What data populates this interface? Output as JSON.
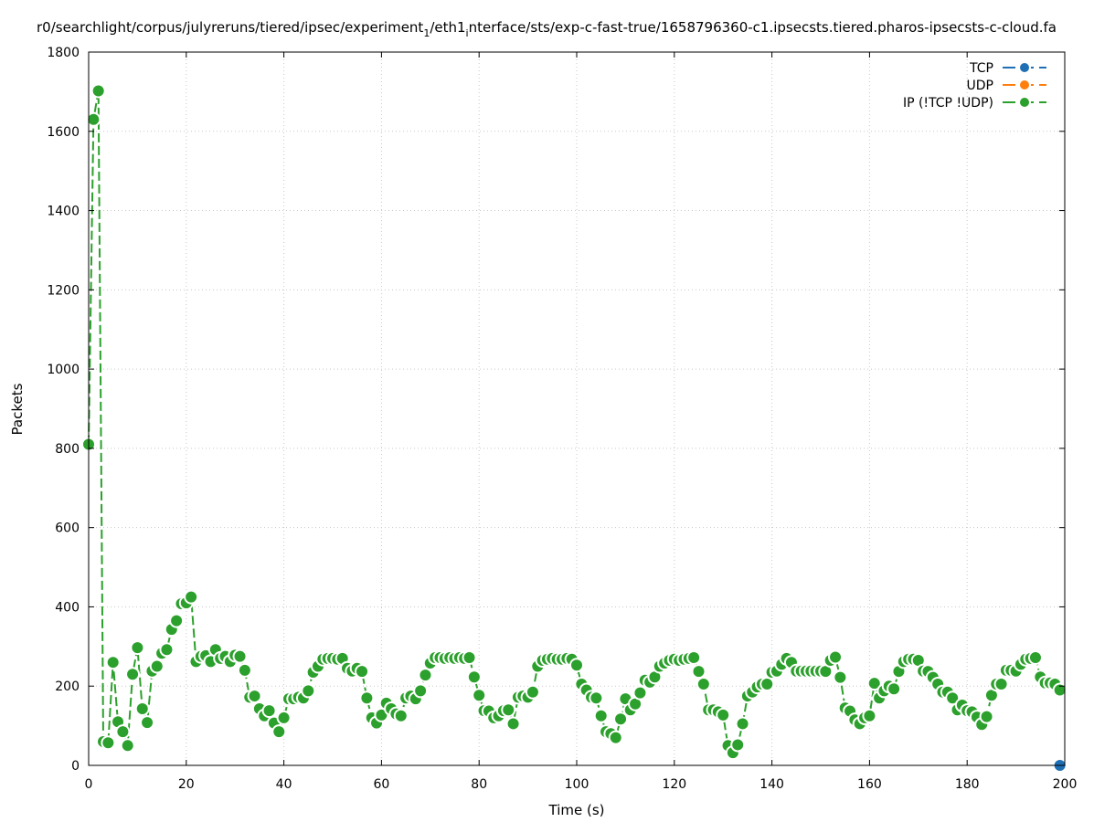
{
  "chart_data": {
    "type": "line",
    "title_prefix": "r0/searchlight/corpus/julyreruns/tiered/ipsec/experiment",
    "title_sub1": "1",
    "title_mid": "/eth1",
    "title_sub2": "i",
    "title_suffix": "nterface/sts/exp-c-fast-true/1658796360-c1.ipsecsts.tiered.pharos-ipsecsts-c-cloud.fa",
    "xlabel": "Time (s)",
    "ylabel": "Packets",
    "xlim": [
      0,
      200
    ],
    "ylim": [
      0,
      1800
    ],
    "xticks": [
      0,
      20,
      40,
      60,
      80,
      100,
      120,
      140,
      160,
      180,
      200
    ],
    "yticks": [
      0,
      200,
      400,
      600,
      800,
      1000,
      1200,
      1400,
      1600,
      1800
    ],
    "grid": true,
    "legend_position": "top-right",
    "series": [
      {
        "name": "TCP",
        "color": "#1f6fb4",
        "points": [
          [
            199,
            0
          ]
        ]
      },
      {
        "name": "UDP",
        "color": "#ff7f0e",
        "points": [
          [
            199,
            0
          ]
        ]
      },
      {
        "name": "IP (!TCP  !UDP)",
        "color": "#2ca02c",
        "points": [
          [
            0,
            810
          ],
          [
            1,
            1630
          ],
          [
            2,
            1702
          ],
          [
            3,
            60
          ],
          [
            4,
            57
          ],
          [
            5,
            260
          ],
          [
            6,
            110
          ],
          [
            7,
            85
          ],
          [
            8,
            50
          ],
          [
            9,
            230
          ],
          [
            10,
            297
          ],
          [
            11,
            143
          ],
          [
            12,
            108
          ],
          [
            13,
            238
          ],
          [
            14,
            250
          ],
          [
            15,
            283
          ],
          [
            16,
            292
          ],
          [
            17,
            343
          ],
          [
            18,
            365
          ],
          [
            19,
            408
          ],
          [
            20,
            410
          ],
          [
            21,
            425
          ],
          [
            22,
            262
          ],
          [
            23,
            275
          ],
          [
            24,
            277
          ],
          [
            25,
            262
          ],
          [
            26,
            292
          ],
          [
            27,
            270
          ],
          [
            28,
            275
          ],
          [
            29,
            262
          ],
          [
            30,
            278
          ],
          [
            31,
            275
          ],
          [
            32,
            240
          ],
          [
            33,
            172
          ],
          [
            34,
            175
          ],
          [
            35,
            143
          ],
          [
            36,
            125
          ],
          [
            37,
            138
          ],
          [
            38,
            107
          ],
          [
            39,
            85
          ],
          [
            40,
            120
          ],
          [
            41,
            168
          ],
          [
            42,
            168
          ],
          [
            43,
            172
          ],
          [
            44,
            170
          ],
          [
            45,
            188
          ],
          [
            46,
            235
          ],
          [
            47,
            250
          ],
          [
            48,
            268
          ],
          [
            49,
            270
          ],
          [
            50,
            270
          ],
          [
            51,
            268
          ],
          [
            52,
            270
          ],
          [
            53,
            245
          ],
          [
            54,
            238
          ],
          [
            55,
            245
          ],
          [
            56,
            237
          ],
          [
            57,
            170
          ],
          [
            58,
            120
          ],
          [
            59,
            107
          ],
          [
            60,
            127
          ],
          [
            61,
            157
          ],
          [
            62,
            143
          ],
          [
            63,
            130
          ],
          [
            64,
            125
          ],
          [
            65,
            170
          ],
          [
            66,
            175
          ],
          [
            67,
            168
          ],
          [
            68,
            188
          ],
          [
            69,
            228
          ],
          [
            70,
            258
          ],
          [
            71,
            272
          ],
          [
            72,
            272
          ],
          [
            73,
            270
          ],
          [
            74,
            272
          ],
          [
            75,
            270
          ],
          [
            76,
            272
          ],
          [
            77,
            270
          ],
          [
            78,
            272
          ],
          [
            79,
            223
          ],
          [
            80,
            177
          ],
          [
            81,
            138
          ],
          [
            82,
            137
          ],
          [
            83,
            120
          ],
          [
            84,
            125
          ],
          [
            85,
            138
          ],
          [
            86,
            140
          ],
          [
            87,
            105
          ],
          [
            88,
            172
          ],
          [
            89,
            175
          ],
          [
            90,
            172
          ],
          [
            91,
            185
          ],
          [
            92,
            250
          ],
          [
            93,
            265
          ],
          [
            94,
            268
          ],
          [
            95,
            270
          ],
          [
            96,
            268
          ],
          [
            97,
            268
          ],
          [
            98,
            270
          ],
          [
            99,
            268
          ],
          [
            100,
            253
          ],
          [
            101,
            205
          ],
          [
            102,
            190
          ],
          [
            103,
            172
          ],
          [
            104,
            170
          ],
          [
            105,
            125
          ],
          [
            106,
            85
          ],
          [
            107,
            80
          ],
          [
            108,
            70
          ],
          [
            109,
            117
          ],
          [
            110,
            168
          ],
          [
            111,
            140
          ],
          [
            112,
            155
          ],
          [
            113,
            183
          ],
          [
            114,
            215
          ],
          [
            115,
            210
          ],
          [
            116,
            223
          ],
          [
            117,
            250
          ],
          [
            118,
            258
          ],
          [
            119,
            265
          ],
          [
            120,
            268
          ],
          [
            121,
            265
          ],
          [
            122,
            268
          ],
          [
            123,
            270
          ],
          [
            124,
            272
          ],
          [
            125,
            237
          ],
          [
            126,
            205
          ],
          [
            127,
            140
          ],
          [
            128,
            140
          ],
          [
            129,
            135
          ],
          [
            130,
            127
          ],
          [
            131,
            50
          ],
          [
            132,
            32
          ],
          [
            133,
            52
          ],
          [
            134,
            105
          ],
          [
            135,
            175
          ],
          [
            136,
            185
          ],
          [
            137,
            198
          ],
          [
            138,
            205
          ],
          [
            139,
            205
          ],
          [
            140,
            235
          ],
          [
            141,
            238
          ],
          [
            142,
            255
          ],
          [
            143,
            270
          ],
          [
            144,
            260
          ],
          [
            145,
            238
          ],
          [
            146,
            238
          ],
          [
            147,
            238
          ],
          [
            148,
            238
          ],
          [
            149,
            238
          ],
          [
            150,
            238
          ],
          [
            151,
            237
          ],
          [
            152,
            265
          ],
          [
            153,
            273
          ],
          [
            154,
            222
          ],
          [
            155,
            145
          ],
          [
            156,
            137
          ],
          [
            157,
            115
          ],
          [
            158,
            105
          ],
          [
            159,
            120
          ],
          [
            160,
            125
          ],
          [
            161,
            207
          ],
          [
            162,
            170
          ],
          [
            163,
            188
          ],
          [
            164,
            200
          ],
          [
            165,
            193
          ],
          [
            166,
            237
          ],
          [
            167,
            262
          ],
          [
            168,
            268
          ],
          [
            169,
            268
          ],
          [
            170,
            265
          ],
          [
            171,
            238
          ],
          [
            172,
            237
          ],
          [
            173,
            222
          ],
          [
            174,
            205
          ],
          [
            175,
            185
          ],
          [
            176,
            185
          ],
          [
            177,
            170
          ],
          [
            178,
            140
          ],
          [
            179,
            152
          ],
          [
            180,
            138
          ],
          [
            181,
            135
          ],
          [
            182,
            122
          ],
          [
            183,
            103
          ],
          [
            184,
            123
          ],
          [
            185,
            177
          ],
          [
            186,
            205
          ],
          [
            187,
            205
          ],
          [
            188,
            240
          ],
          [
            189,
            240
          ],
          [
            190,
            238
          ],
          [
            191,
            255
          ],
          [
            192,
            268
          ],
          [
            193,
            270
          ],
          [
            194,
            272
          ],
          [
            195,
            223
          ],
          [
            196,
            208
          ],
          [
            197,
            208
          ],
          [
            198,
            205
          ],
          [
            199,
            190
          ]
        ]
      }
    ]
  }
}
